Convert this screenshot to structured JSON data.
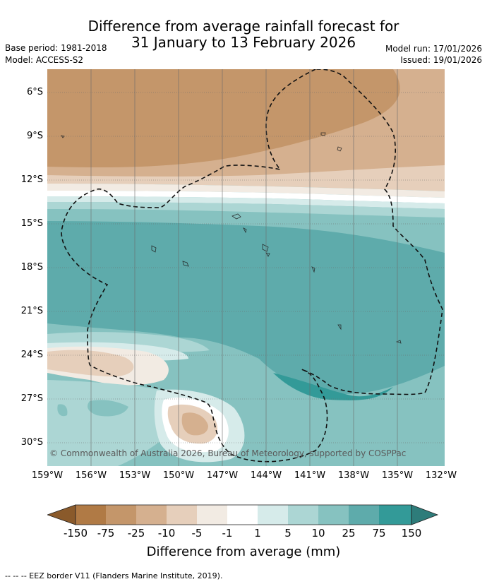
{
  "title_line1": "Difference from average rainfall forecast for",
  "title_line2": "31 January to 13 February 2026",
  "base_period": "Base period: 1981-2018",
  "model": "Model: ACCESS-S2",
  "model_run": "Model run: 17/01/2026",
  "issued": "Issued: 19/01/2026",
  "copyright": "© Commonwealth of Australia 2026, Bureau of Meteorology, supported by COSPPac",
  "y_ticks": [
    "6°S",
    "9°S",
    "12°S",
    "15°S",
    "18°S",
    "21°S",
    "24°S",
    "27°S",
    "30°S"
  ],
  "x_ticks": [
    "159°W",
    "156°W",
    "153°W",
    "150°W",
    "147°W",
    "144°W",
    "141°W",
    "138°W",
    "135°W",
    "132°W"
  ],
  "colorbar": {
    "labels": [
      "-150",
      "-75",
      "-25",
      "-10",
      "-5",
      "-1",
      "1",
      "5",
      "10",
      "25",
      "75",
      "150"
    ],
    "title": "Difference from average (mm)",
    "colors": [
      "#8a5a2b",
      "#b07a45",
      "#c4966a",
      "#d5b08f",
      "#e6cfbb",
      "#f2ebe3",
      "#ffffff",
      "#d6ebea",
      "#acd6d4",
      "#86c2c0",
      "#5eabab",
      "#339a98",
      "#2e7c7a"
    ]
  },
  "legend_note": "--  --  -- EEZ border V11 (Flanders Marine Institute, 2019)."
}
